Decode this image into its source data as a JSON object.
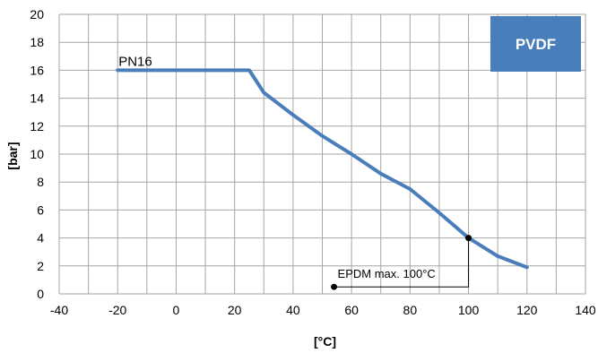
{
  "chart_data": {
    "type": "line",
    "title": "",
    "xlabel": "[°C]",
    "ylabel": "[bar]",
    "xlim": [
      -40,
      140
    ],
    "ylim": [
      0,
      20
    ],
    "x_ticks": [
      -40,
      -20,
      0,
      20,
      40,
      60,
      80,
      100,
      120,
      140
    ],
    "y_ticks": [
      0,
      2,
      4,
      6,
      8,
      10,
      12,
      14,
      16,
      18,
      20
    ],
    "grid": true,
    "series": [
      {
        "color": "#4a7ebb",
        "x": [
          -20,
          25,
          30,
          40,
          50,
          60,
          70,
          80,
          90,
          100,
          110,
          120
        ],
        "y": [
          16,
          16,
          14.4,
          12.8,
          11.3,
          10.0,
          8.6,
          7.5,
          5.8,
          4.0,
          2.7,
          1.9
        ]
      }
    ],
    "annotations": {
      "pn_label": "PN16",
      "badge": "PVDF",
      "badge_color": "#4a7ebb",
      "marker": {
        "label": "EPDM max. 100°C",
        "x": 100,
        "y": 4
      },
      "marker_start": {
        "x": 54,
        "y": 0.5
      }
    }
  }
}
